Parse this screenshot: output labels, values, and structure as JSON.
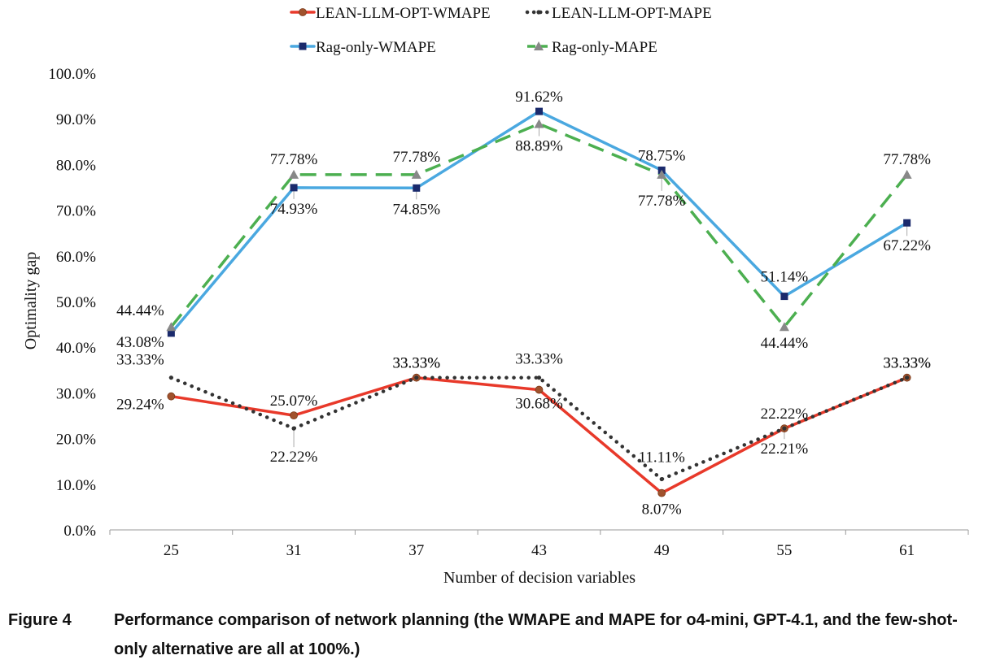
{
  "chart_data": {
    "type": "line",
    "title": "",
    "xlabel": "Number of decision variables",
    "ylabel": "Optimality gap",
    "categories": [
      "25",
      "31",
      "37",
      "43",
      "49",
      "55",
      "61"
    ],
    "ylim": [
      0,
      100
    ],
    "yticks": [
      "0.0%",
      "10.0%",
      "20.0%",
      "30.0%",
      "40.0%",
      "50.0%",
      "60.0%",
      "70.0%",
      "80.0%",
      "90.0%",
      "100.0%"
    ],
    "series": [
      {
        "name": "LEAN-LLM-OPT-WMAPE",
        "color": "#e8392a",
        "marker_color": "#a0522d",
        "values": [
          29.24,
          25.07,
          33.33,
          30.68,
          8.07,
          22.21,
          33.33
        ],
        "labels": [
          "29.24%",
          "25.07%",
          "33.33%",
          "30.68%",
          "8.07%",
          "22.21%",
          "33.33%"
        ]
      },
      {
        "name": "LEAN-LLM-OPT-MAPE",
        "color": "#333333",
        "marker_color": "#333333",
        "values": [
          33.33,
          22.22,
          33.33,
          33.33,
          11.11,
          22.22,
          33.33
        ],
        "labels": [
          "33.33%",
          "22.22%",
          "33.33%",
          "33.33%",
          "11.11%",
          "22.22%",
          "33.33%"
        ]
      },
      {
        "name": "Rag-only-WMAPE",
        "color": "#4aa8e0",
        "marker_color": "#1a2a6c",
        "values": [
          43.08,
          74.93,
          74.85,
          91.62,
          78.75,
          51.14,
          67.22
        ],
        "labels": [
          "43.08%",
          "74.93%",
          "74.85%",
          "91.62%",
          "78.75%",
          "51.14%",
          "67.22%"
        ]
      },
      {
        "name": "Rag-only-MAPE",
        "color": "#4caf50",
        "marker_color": "#888888",
        "values": [
          44.44,
          77.78,
          77.78,
          88.89,
          77.78,
          44.44,
          77.78
        ],
        "labels": [
          "44.44%",
          "77.78%",
          "77.78%",
          "88.89%",
          "77.78%",
          "44.44%",
          "77.78%"
        ]
      }
    ]
  },
  "caption": {
    "figure_number": "Figure 4",
    "text": "Performance comparison of network planning (the WMAPE and MAPE for o4-mini, GPT-4.1, and the few-shot-only alternative are all at 100%.)"
  }
}
